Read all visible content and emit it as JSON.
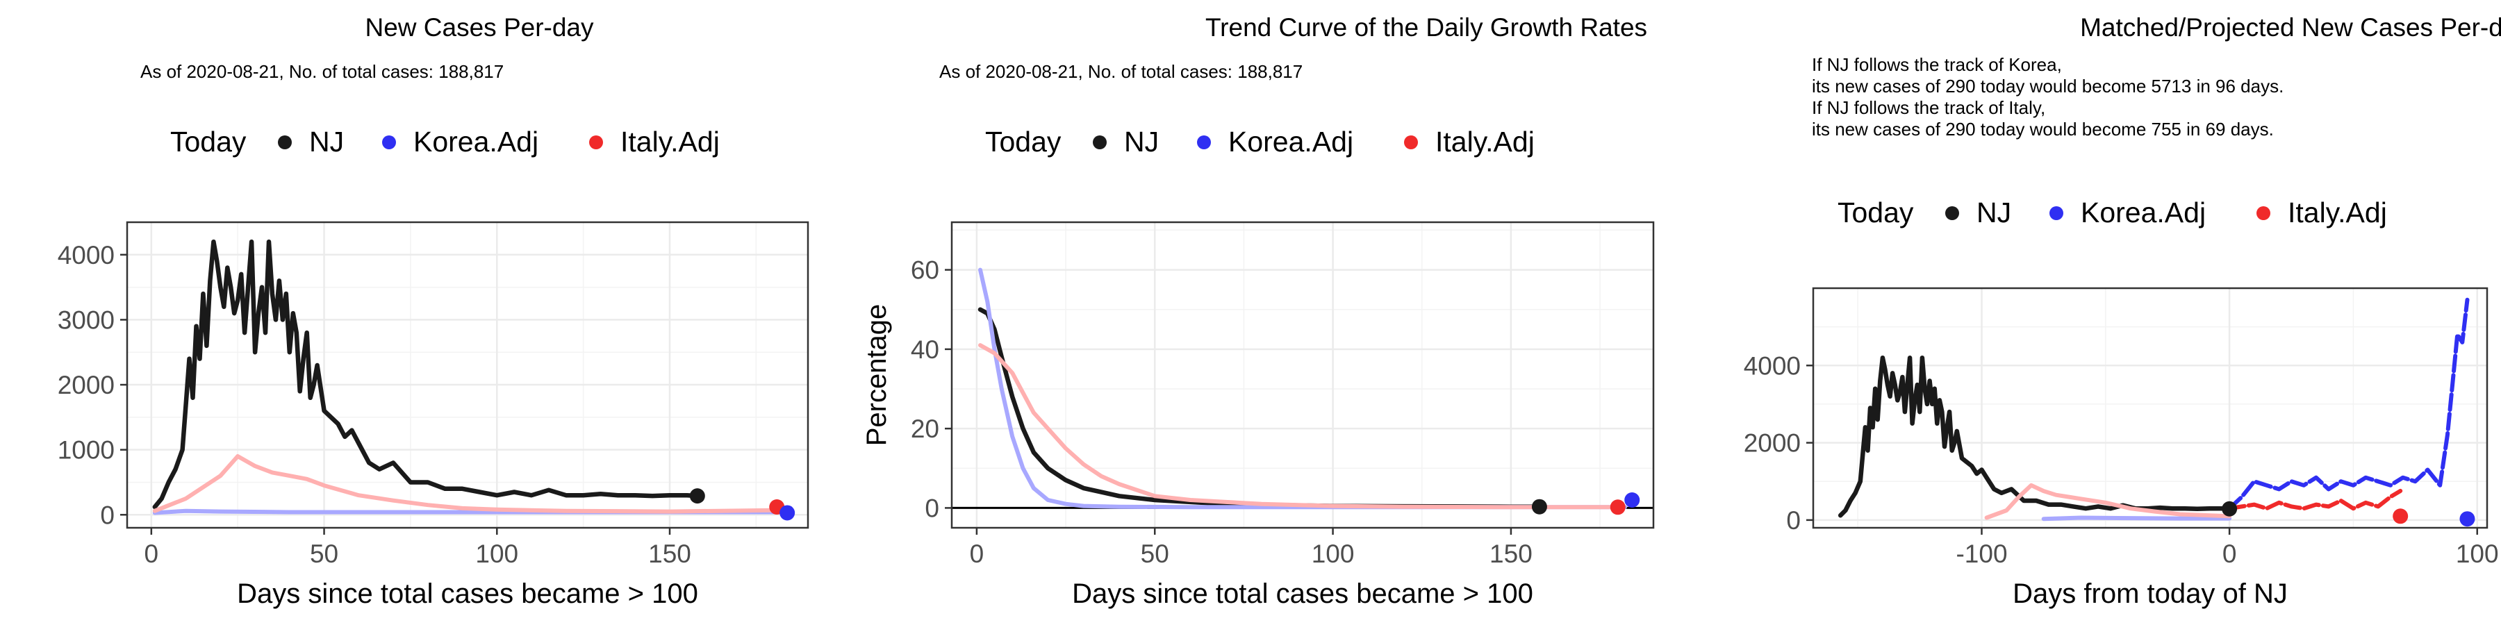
{
  "colors": {
    "nj": "#1a1a1a",
    "korea": "#2f2ff2",
    "italy": "#f02a2a",
    "korea_line": "#a8a8ff",
    "italy_line": "#ffb0b0",
    "grid": "#ebebeb",
    "frame": "#333333"
  },
  "legend": {
    "today": "Today",
    "nj": "NJ",
    "korea": "Korea.Adj",
    "italy": "Italy.Adj"
  },
  "chart_data": [
    {
      "type": "line",
      "title": "New Cases Per-day",
      "subtitle": "As of 2020-08-21, No. of total cases: 188,817",
      "xlabel": "Days since total cases became > 100",
      "ylabel": "",
      "xlim": [
        -7,
        190
      ],
      "ylim": [
        -200,
        4500
      ],
      "xticks": [
        0,
        50,
        100,
        150
      ],
      "yticks": [
        0,
        1000,
        2000,
        3000,
        4000
      ],
      "legend_position": "top",
      "grid": true,
      "series": [
        {
          "name": "NJ",
          "line": "solid",
          "role": "nj",
          "x": [
            1,
            3,
            5,
            7,
            9,
            10,
            11,
            12,
            13,
            14,
            15,
            16,
            17,
            18,
            19,
            20,
            21,
            22,
            23,
            24,
            25,
            26,
            27,
            28,
            29,
            30,
            31,
            32,
            33,
            34,
            35,
            36,
            37,
            38,
            39,
            40,
            41,
            42,
            43,
            44,
            45,
            46,
            47,
            48,
            50,
            52,
            54,
            56,
            58,
            60,
            63,
            66,
            70,
            75,
            80,
            85,
            90,
            95,
            100,
            105,
            110,
            115,
            120,
            125,
            130,
            135,
            140,
            145,
            150,
            155,
            158
          ],
          "y": [
            120,
            250,
            500,
            700,
            1000,
            1700,
            2400,
            1800,
            2900,
            2400,
            3400,
            2600,
            3600,
            4200,
            3900,
            3500,
            3200,
            3800,
            3500,
            3100,
            3300,
            3700,
            2800,
            3500,
            4200,
            2500,
            3100,
            3500,
            2800,
            4200,
            3400,
            3000,
            3600,
            3000,
            3400,
            2500,
            3100,
            2800,
            1900,
            2400,
            2800,
            1800,
            2000,
            2300,
            1600,
            1500,
            1400,
            1200,
            1300,
            1100,
            800,
            700,
            800,
            500,
            500,
            400,
            400,
            350,
            300,
            350,
            300,
            380,
            300,
            300,
            320,
            300,
            300,
            290,
            300,
            300,
            290
          ]
        },
        {
          "name": "Korea.Adj",
          "line": "faded",
          "role": "korea",
          "x": [
            1,
            10,
            20,
            40,
            60,
            100,
            150,
            183
          ],
          "y": [
            30,
            60,
            50,
            40,
            40,
            40,
            40,
            40
          ]
        },
        {
          "name": "Italy.Adj",
          "line": "faded",
          "role": "italy",
          "x": [
            1,
            10,
            20,
            25,
            30,
            35,
            40,
            45,
            50,
            60,
            70,
            80,
            90,
            100,
            120,
            150,
            180
          ],
          "y": [
            60,
            250,
            600,
            900,
            750,
            650,
            600,
            550,
            450,
            300,
            220,
            150,
            100,
            80,
            60,
            50,
            70
          ]
        }
      ],
      "today_points": [
        {
          "series": "NJ",
          "x": 158,
          "y": 290
        },
        {
          "series": "Italy.Adj",
          "x": 181,
          "y": 120
        },
        {
          "series": "Korea.Adj",
          "x": 184,
          "y": 30
        }
      ]
    },
    {
      "type": "line",
      "title": "Trend Curve of the Daily Growth Rates",
      "subtitle": "As of 2020-08-21, No. of total cases: 188,817",
      "xlabel": "Days since total cases became > 100",
      "ylabel": "Percentage",
      "xlim": [
        -7,
        190
      ],
      "ylim": [
        -5,
        72
      ],
      "xticks": [
        0,
        50,
        100,
        150
      ],
      "yticks": [
        0,
        20,
        40,
        60
      ],
      "hline": 0,
      "legend_position": "top",
      "grid": true,
      "series": [
        {
          "name": "NJ",
          "line": "solid",
          "role": "nj",
          "x": [
            1,
            3,
            5,
            7,
            10,
            13,
            16,
            20,
            25,
            30,
            35,
            40,
            50,
            60,
            70,
            80,
            100,
            120,
            150,
            158
          ],
          "y": [
            50,
            49,
            45,
            38,
            28,
            20,
            14,
            10,
            7,
            5,
            4,
            3,
            2,
            1.5,
            1,
            0.8,
            0.5,
            0.4,
            0.3,
            0.3
          ]
        },
        {
          "name": "Korea.Adj",
          "line": "faded",
          "role": "korea",
          "x": [
            1,
            3,
            5,
            7,
            10,
            13,
            16,
            20,
            25,
            30,
            40,
            60,
            100,
            150,
            182
          ],
          "y": [
            60,
            52,
            40,
            30,
            18,
            10,
            5,
            2,
            1,
            0.5,
            0.3,
            0.2,
            0.2,
            0.2,
            0.2
          ]
        },
        {
          "name": "Italy.Adj",
          "line": "faded",
          "role": "italy",
          "x": [
            1,
            3,
            5,
            8,
            10,
            13,
            16,
            20,
            25,
            30,
            35,
            40,
            50,
            60,
            70,
            80,
            100,
            120,
            150,
            180
          ],
          "y": [
            41,
            40,
            39,
            36,
            34,
            29,
            24,
            20,
            15,
            11,
            8,
            6,
            3,
            2,
            1.5,
            1,
            0.5,
            0.3,
            0.2,
            0.2
          ]
        }
      ],
      "today_points": [
        {
          "series": "NJ",
          "x": 158,
          "y": 0.3
        },
        {
          "series": "Italy.Adj",
          "x": 180,
          "y": 0.2
        },
        {
          "series": "Korea.Adj",
          "x": 184,
          "y": 2
        }
      ]
    },
    {
      "type": "line",
      "title": "Matched/Projected New Cases Per-day",
      "subtitle_lines": [
        "If NJ follows the track of Korea,",
        "its new cases of 290 today would become 5713 in 96 days.",
        "If NJ follows the track of Italy,",
        "its new cases of 290 today would become 755 in 69 days."
      ],
      "xlabel": "Days from today of NJ",
      "ylabel": "",
      "xlim": [
        -168,
        104
      ],
      "ylim": [
        -200,
        6000
      ],
      "xticks": [
        -100,
        0,
        100
      ],
      "yticks": [
        0,
        2000,
        4000
      ],
      "legend_position": "top",
      "grid": true,
      "series": [
        {
          "name": "NJ",
          "line": "solid",
          "role": "nj",
          "x": [
            -157,
            -155,
            -153,
            -151,
            -149,
            -148,
            -147,
            -146,
            -145,
            -144,
            -143,
            -142,
            -141,
            -140,
            -139,
            -138,
            -137,
            -136,
            -135,
            -134,
            -133,
            -132,
            -131,
            -130,
            -129,
            -128,
            -127,
            -126,
            -125,
            -124,
            -123,
            -122,
            -121,
            -120,
            -119,
            -118,
            -117,
            -116,
            -115,
            -114,
            -113,
            -112,
            -111,
            -110,
            -108,
            -106,
            -104,
            -102,
            -100,
            -98,
            -95,
            -92,
            -88,
            -83,
            -78,
            -73,
            -68,
            -63,
            -58,
            -53,
            -48,
            -43,
            -38,
            -33,
            -28,
            -23,
            -18,
            -13,
            -8,
            -3,
            0
          ],
          "y": [
            120,
            250,
            500,
            700,
            1000,
            1700,
            2400,
            1800,
            2900,
            2400,
            3400,
            2600,
            3600,
            4200,
            3900,
            3500,
            3200,
            3800,
            3500,
            3100,
            3300,
            3700,
            2800,
            3500,
            4200,
            2500,
            3100,
            3500,
            2800,
            4200,
            3400,
            3000,
            3600,
            3000,
            3400,
            2500,
            3100,
            2800,
            1900,
            2400,
            2800,
            1800,
            2000,
            2300,
            1600,
            1500,
            1400,
            1200,
            1300,
            1100,
            800,
            700,
            800,
            500,
            500,
            400,
            400,
            350,
            300,
            350,
            300,
            380,
            300,
            300,
            320,
            300,
            300,
            290,
            300,
            300,
            290
          ]
        },
        {
          "name": "Korea.Adj",
          "line": "faded",
          "role": "korea",
          "x": [
            -75,
            -60,
            -40,
            -20,
            -10,
            0
          ],
          "y": [
            30,
            60,
            50,
            40,
            40,
            40
          ]
        },
        {
          "name": "Korea.Adj",
          "line": "dashed",
          "role": "korea",
          "x": [
            0,
            5,
            10,
            15,
            20,
            25,
            30,
            35,
            40,
            45,
            50,
            55,
            60,
            65,
            70,
            75,
            80,
            85,
            88,
            90,
            92,
            94,
            96
          ],
          "y": [
            300,
            600,
            1000,
            900,
            800,
            1000,
            900,
            1100,
            800,
            1000,
            900,
            1100,
            1000,
            900,
            1100,
            1000,
            1300,
            900,
            2200,
            3500,
            4800,
            4600,
            5700
          ]
        },
        {
          "name": "Italy.Adj",
          "line": "faded",
          "role": "italy",
          "x": [
            -98,
            -90,
            -85,
            -80,
            -75,
            -70,
            -65,
            -60,
            -50,
            -40,
            -30,
            -20,
            0
          ],
          "y": [
            60,
            250,
            600,
            900,
            750,
            650,
            600,
            550,
            450,
            300,
            220,
            150,
            100
          ]
        },
        {
          "name": "Italy.Adj",
          "line": "dashed",
          "role": "italy",
          "x": [
            0,
            5,
            10,
            15,
            20,
            25,
            30,
            35,
            40,
            45,
            50,
            55,
            60,
            65,
            69
          ],
          "y": [
            300,
            350,
            400,
            300,
            450,
            350,
            300,
            400,
            350,
            500,
            300,
            450,
            350,
            600,
            755
          ]
        }
      ],
      "today_points": [
        {
          "series": "NJ",
          "x": 0,
          "y": 290
        },
        {
          "series": "Italy.Adj",
          "x": 69,
          "y": 100
        },
        {
          "series": "Korea.Adj",
          "x": 96,
          "y": 30
        }
      ]
    }
  ]
}
